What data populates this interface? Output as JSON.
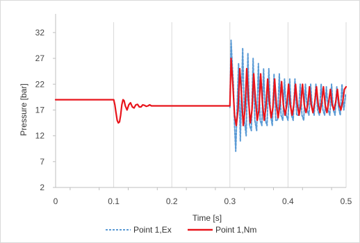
{
  "chart_data": {
    "type": "line",
    "title": "",
    "xlabel": "Time [s]",
    "ylabel": "Pressure [bar]",
    "xlim": [
      0,
      0.5
    ],
    "ylim": [
      2,
      34
    ],
    "x_ticks": [
      "0",
      "0.1",
      "0.2",
      "0.3",
      "0.4",
      "0.5"
    ],
    "y_ticks": [
      "2",
      "7",
      "12",
      "17",
      "22",
      "27",
      "32"
    ],
    "grid": "vertical",
    "legend_position": "bottom",
    "colors": {
      "Point 1,Ex": "#5b9bd5",
      "Point 1,Nm": "#e8141b"
    },
    "series": [
      {
        "name": "Point 1,Ex",
        "style": "dashed",
        "x": [
          0.3,
          0.302,
          0.304,
          0.306,
          0.308,
          0.31,
          0.312,
          0.315,
          0.318,
          0.32,
          0.322,
          0.325,
          0.328,
          0.331,
          0.334,
          0.337,
          0.34,
          0.343,
          0.346,
          0.349,
          0.352,
          0.355,
          0.358,
          0.361,
          0.364,
          0.367,
          0.37,
          0.373,
          0.376,
          0.379,
          0.382,
          0.385,
          0.388,
          0.391,
          0.394,
          0.397,
          0.4,
          0.403,
          0.406,
          0.409,
          0.412,
          0.415,
          0.418,
          0.421,
          0.424,
          0.427,
          0.43,
          0.433,
          0.436,
          0.439,
          0.442,
          0.445,
          0.448,
          0.451,
          0.454,
          0.457,
          0.46,
          0.463,
          0.466,
          0.469,
          0.472,
          0.475,
          0.478,
          0.481,
          0.484,
          0.487,
          0.49,
          0.493,
          0.496,
          0.499
        ],
        "y": [
          17.5,
          30.5,
          26,
          22,
          14,
          9,
          16,
          26,
          11,
          20,
          29,
          15,
          12,
          28,
          14,
          13,
          27,
          15,
          13,
          26,
          15,
          14,
          25,
          15,
          14,
          25,
          16,
          14,
          24,
          15,
          15,
          24,
          16,
          15,
          23,
          16,
          15,
          23,
          16,
          15,
          23,
          16,
          16,
          22,
          16,
          15,
          22,
          17,
          16,
          22,
          17,
          16,
          22,
          17,
          16,
          22,
          17,
          16,
          21.5,
          17,
          16,
          22,
          17,
          16,
          21.5,
          17.5,
          16,
          22,
          17,
          20
        ]
      },
      {
        "name": "Point 1,Nm",
        "style": "solid",
        "x": [
          0,
          0.1,
          0.102,
          0.104,
          0.106,
          0.108,
          0.11,
          0.112,
          0.114,
          0.116,
          0.118,
          0.12,
          0.123,
          0.126,
          0.129,
          0.132,
          0.135,
          0.138,
          0.141,
          0.144,
          0.147,
          0.15,
          0.153,
          0.156,
          0.159,
          0.162,
          0.165,
          0.2,
          0.25,
          0.299,
          0.3,
          0.302,
          0.305,
          0.308,
          0.311,
          0.314,
          0.317,
          0.32,
          0.323,
          0.326,
          0.329,
          0.332,
          0.335,
          0.338,
          0.341,
          0.344,
          0.347,
          0.35,
          0.353,
          0.356,
          0.359,
          0.362,
          0.365,
          0.368,
          0.371,
          0.374,
          0.377,
          0.38,
          0.383,
          0.386,
          0.389,
          0.392,
          0.395,
          0.398,
          0.401,
          0.404,
          0.407,
          0.41,
          0.413,
          0.416,
          0.419,
          0.422,
          0.425,
          0.428,
          0.431,
          0.434,
          0.437,
          0.44,
          0.443,
          0.446,
          0.449,
          0.452,
          0.455,
          0.458,
          0.461,
          0.464,
          0.467,
          0.47,
          0.473,
          0.476,
          0.479,
          0.482,
          0.485,
          0.488,
          0.491,
          0.494,
          0.497,
          0.5
        ],
        "y": [
          19,
          19,
          18,
          16.5,
          15,
          14.5,
          14.7,
          16,
          18,
          19,
          18.8,
          17.8,
          17,
          18,
          18.4,
          17.6,
          17.4,
          18,
          18.1,
          17.6,
          17.6,
          18,
          17.9,
          17.7,
          17.8,
          18,
          17.8,
          17.8,
          17.8,
          17.8,
          17.8,
          27,
          22,
          16,
          14,
          17,
          25,
          20,
          14,
          17,
          25,
          19,
          14.5,
          17,
          24,
          19,
          15,
          17,
          24,
          18.5,
          15,
          17.5,
          23,
          18.5,
          15.5,
          17.5,
          23,
          18,
          15.5,
          18,
          22.5,
          18,
          16,
          18,
          22,
          18,
          16,
          18,
          22,
          18,
          16,
          18,
          22,
          18,
          16.5,
          18,
          21.5,
          18,
          16.5,
          18.5,
          21.5,
          18,
          16.5,
          18.5,
          21.5,
          18,
          16.5,
          18.5,
          21,
          18,
          17,
          18.5,
          21,
          18,
          17,
          18.5,
          21,
          21.5
        ]
      }
    ]
  }
}
